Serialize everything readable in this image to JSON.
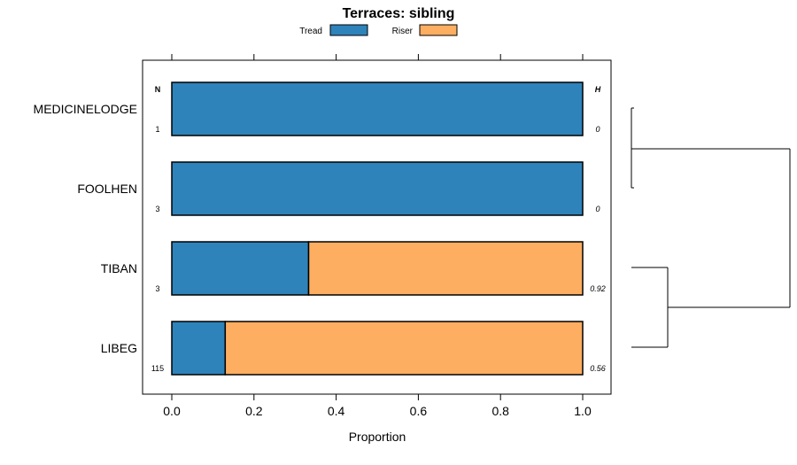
{
  "chart_data": {
    "type": "bar",
    "orientation": "horizontal",
    "stacked": true,
    "title": "Terraces: sibling",
    "xlabel": "Proportion",
    "ylabel": "",
    "xlim": [
      0,
      1
    ],
    "x_ticks": [
      0,
      0.2,
      0.4,
      0.6,
      0.8,
      1
    ],
    "x_tick_labels": [
      "0.0",
      "0.2",
      "0.4",
      "0.6",
      "0.8",
      "1.0"
    ],
    "categories": [
      "MEDICINELODGE",
      "FOOLHEN",
      "TIBAN",
      "LIBEG"
    ],
    "series": [
      {
        "name": "Tread",
        "color": "#2e83ba",
        "values": [
          1.0,
          1.0,
          0.333,
          0.13
        ]
      },
      {
        "name": "Riser",
        "color": "#fdae61",
        "values": [
          0.0,
          0.0,
          0.667,
          0.87
        ]
      }
    ],
    "n_header": "N",
    "n_values": [
      "1",
      "3",
      "3",
      "115"
    ],
    "h_header": "H",
    "h_values": [
      "0",
      "0",
      "0.92",
      "0.56"
    ],
    "legend_position": "top",
    "dendrogram": {
      "merges": [
        {
          "left": "MEDICINELODGE",
          "right": "FOOLHEN"
        },
        {
          "left": "TIBAN",
          "right": "LIBEG"
        },
        {
          "left": "cluster-1",
          "right": "cluster-2"
        }
      ]
    }
  }
}
